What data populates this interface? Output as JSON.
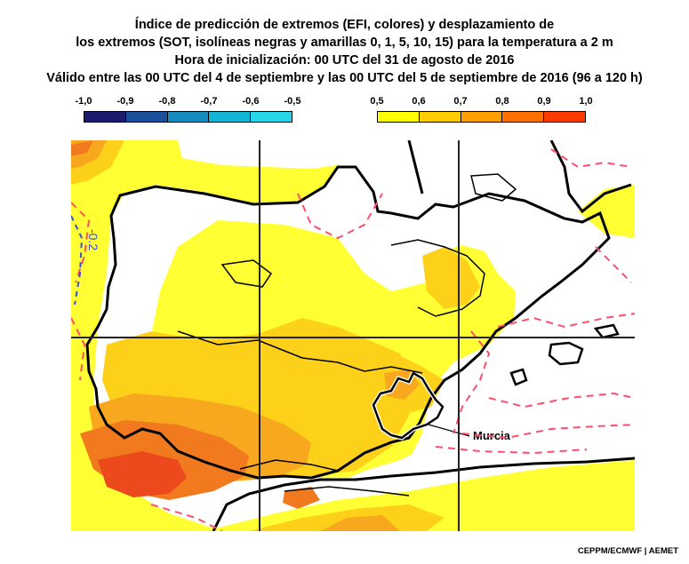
{
  "title": {
    "line1": "Índice de predicción de extremos (EFI, colores) y desplazamiento de",
    "line2": "los extremos (SOT, isolíneas negras y amarillas 0, 1, 5, 10, 15) para la temperatura a 2 m",
    "line3": "Hora de inicialización: 00 UTC del 31 de agosto de 2016",
    "line4": "Válido entre las 00 UTC del 4 de septiembre y las 00 UTC del 5 de septiembre de 2016 (96 a 120 h)"
  },
  "legend_cold": {
    "labels": [
      "-1,0",
      "-0,9",
      "-0,8",
      "-0,7",
      "-0,6",
      "-0,5"
    ],
    "colors": [
      "#1c1c6e",
      "#1b4f9c",
      "#168bbd",
      "#12b5d6",
      "#27d6e6",
      "#43f4f4"
    ]
  },
  "legend_warm": {
    "labels": [
      "0,5",
      "0,6",
      "0,7",
      "0,8",
      "0,9",
      "1,0"
    ],
    "colors": [
      "#ffff00",
      "#ffcc00",
      "#ff9f00",
      "#ff7000",
      "#ff3a00",
      "#ff0000"
    ]
  },
  "map": {
    "colors": {
      "sea": "#ffffff",
      "efi_05": "#ffff33",
      "efi_06": "#fdd019",
      "efi_07": "#f8a81f",
      "efi_08": "#f27a1e",
      "efi_09": "#ec4a1c",
      "coast": "#000000",
      "sot": "#ff4d6d",
      "cold_contour": "#3a4fd8",
      "grid": "#222222"
    },
    "annotations": {
      "murcia": "Murcia",
      "cold_label": "-0.2"
    }
  },
  "credit": "CEPPM/ECMWF | AEMET"
}
